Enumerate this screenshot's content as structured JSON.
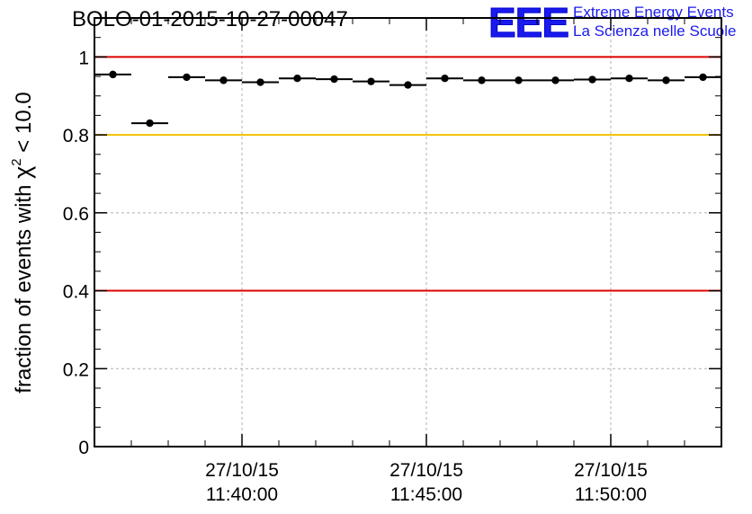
{
  "header": {
    "title": "BOLO-01-2015-10-27-00047",
    "logo_text": "EEE",
    "logo_line1": "Extreme Energy Events",
    "logo_line2": "La Scienza nelle Scuole"
  },
  "colors": {
    "logo": "#1a1aee",
    "upper_line": "#e00000",
    "lower_line": "#e00000",
    "mid_line": "#f5c000",
    "grid": "#b0b0b0",
    "marker": "#000000"
  },
  "chart_data": {
    "type": "scatter",
    "title": "BOLO-01-2015-10-27-00047",
    "ylabel_prefix": "fraction of events with ",
    "ylabel_symbol": "χ",
    "ylabel_exp": "2",
    "ylabel_suffix": " < 10.0",
    "xlabel": "",
    "ylim": [
      0,
      1.1
    ],
    "yticks": [
      0,
      0.2,
      0.4,
      0.6,
      0.8,
      1
    ],
    "ytick_labels": [
      "0",
      "0.2",
      "0.4",
      "0.6",
      "0.8",
      "1"
    ],
    "xlim_minutes": [
      0,
      17
    ],
    "xticks": [
      {
        "m": 4,
        "date": "27/10/15",
        "time": "11:40:00"
      },
      {
        "m": 9,
        "date": "27/10/15",
        "time": "11:45:00"
      },
      {
        "m": 14,
        "date": "27/10/15",
        "time": "11:50:00"
      }
    ],
    "grid": true,
    "reference_lines": [
      {
        "y": 1.0,
        "color": "#e00000"
      },
      {
        "y": 0.8,
        "color": "#f5c000"
      },
      {
        "y": 0.4,
        "color": "#e00000"
      }
    ],
    "bins": [
      {
        "x0": 0,
        "x1": 1,
        "value": 0.955
      },
      {
        "x0": 1,
        "x1": 2,
        "value": 0.83
      },
      {
        "x0": 2,
        "x1": 3,
        "value": 0.948
      },
      {
        "x0": 3,
        "x1": 4,
        "value": 0.94
      },
      {
        "x0": 4,
        "x1": 5,
        "value": 0.935
      },
      {
        "x0": 5,
        "x1": 6,
        "value": 0.945
      },
      {
        "x0": 6,
        "x1": 7,
        "value": 0.943
      },
      {
        "x0": 7,
        "x1": 8,
        "value": 0.937
      },
      {
        "x0": 8,
        "x1": 9,
        "value": 0.928
      },
      {
        "x0": 9,
        "x1": 10,
        "value": 0.945
      },
      {
        "x0": 10,
        "x1": 11,
        "value": 0.94
      },
      {
        "x0": 11,
        "x1": 12,
        "value": 0.94
      },
      {
        "x0": 12,
        "x1": 13,
        "value": 0.94
      },
      {
        "x0": 13,
        "x1": 14,
        "value": 0.942
      },
      {
        "x0": 14,
        "x1": 15,
        "value": 0.945
      },
      {
        "x0": 15,
        "x1": 16,
        "value": 0.94
      },
      {
        "x0": 16,
        "x1": 17,
        "value": 0.948
      }
    ]
  }
}
